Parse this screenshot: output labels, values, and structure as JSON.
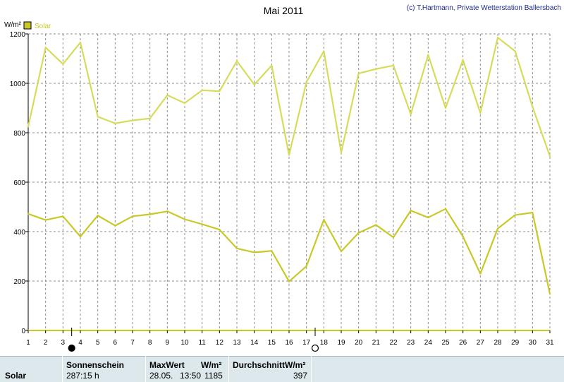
{
  "chart_data": {
    "type": "line",
    "title": "Mai 2011",
    "copyright": "(c) T.Hartmann, Private Wetterstation Ballersbach",
    "ylabel": "W/m²",
    "legend": {
      "label": "Solar",
      "color": "#c8c828",
      "position": "top-left"
    },
    "ylim": [
      0,
      1200
    ],
    "yticks": [
      0,
      200,
      400,
      600,
      800,
      1000,
      1200
    ],
    "xlim": [
      1,
      31
    ],
    "x": [
      1,
      2,
      3,
      4,
      5,
      6,
      7,
      8,
      9,
      10,
      11,
      12,
      13,
      14,
      15,
      16,
      17,
      18,
      19,
      20,
      21,
      22,
      23,
      24,
      25,
      26,
      27,
      28,
      29,
      30,
      31
    ],
    "grid": true,
    "moon_markers": [
      {
        "x": 3.5,
        "phase": "new"
      },
      {
        "x": 17.5,
        "phase": "full"
      }
    ],
    "series": [
      {
        "name": "Maximum",
        "color": "#d6dc5a",
        "values": [
          825,
          1145,
          1078,
          1165,
          865,
          838,
          850,
          858,
          952,
          920,
          972,
          968,
          1090,
          995,
          1072,
          710,
          1005,
          1130,
          720,
          1040,
          1058,
          1072,
          875,
          1115,
          900,
          1095,
          880,
          1185,
          1130,
          905,
          705
        ]
      },
      {
        "name": "Durchschnitt",
        "color": "#c8c828",
        "values": [
          472,
          447,
          462,
          380,
          465,
          424,
          462,
          470,
          482,
          450,
          430,
          408,
          332,
          316,
          322,
          198,
          260,
          448,
          320,
          395,
          427,
          377,
          485,
          457,
          492,
          380,
          230,
          412,
          467,
          477,
          148
        ]
      }
    ]
  },
  "stats": {
    "row_label": "Solar",
    "sunshine_header": "Sonnenschein",
    "sunshine_value": "287:15 h",
    "max_header": "MaxWert",
    "max_unit": "W/m²",
    "max_date": "28.05.",
    "max_time": "13:50",
    "max_value": "1185",
    "avg_header": "DurchschnittW/m²",
    "avg_value": "397"
  }
}
